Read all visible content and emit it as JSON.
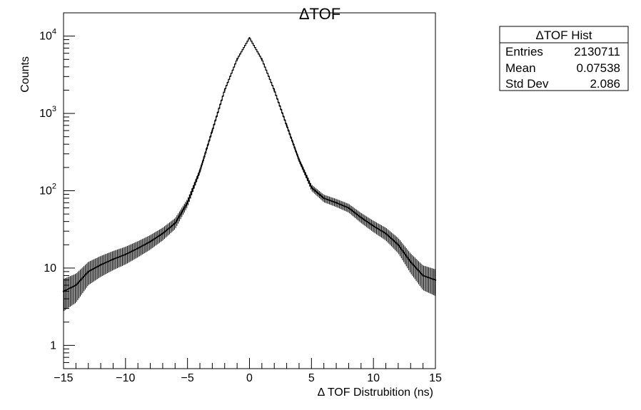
{
  "chart_data": {
    "type": "histogram",
    "title": "ΔTOF",
    "xlabel": "Δ TOF Distrubition (ns)",
    "ylabel": "Counts",
    "xlim": [
      -15,
      15
    ],
    "ylim": [
      0.5,
      20000
    ],
    "yscale": "log",
    "grid": false,
    "x_ticks": [
      -15,
      -10,
      -5,
      0,
      5,
      10,
      15
    ],
    "x_tick_labels": [
      "−15",
      "−10",
      "−5",
      "0",
      "5",
      "10",
      "15"
    ],
    "y_ticks": [
      1,
      10,
      100,
      1000,
      10000
    ],
    "y_tick_labels": [
      {
        "base": "1",
        "exp": ""
      },
      {
        "base": "10",
        "exp": ""
      },
      {
        "base": "10",
        "exp": "2"
      },
      {
        "base": "10",
        "exp": "3"
      },
      {
        "base": "10",
        "exp": "4"
      }
    ],
    "series": [
      {
        "color": "#000000",
        "x": [
          -15,
          -14,
          -13,
          -12,
          -11,
          -10,
          -9,
          -8,
          -7,
          -6,
          -5,
          -4,
          -3,
          -2,
          -1,
          0,
          1,
          2,
          3,
          4,
          5,
          6,
          7,
          8,
          9,
          10,
          11,
          12,
          13,
          14,
          15
        ],
        "y": [
          5,
          6,
          9,
          11,
          13,
          15,
          18,
          22,
          28,
          38,
          70,
          180,
          600,
          2000,
          5000,
          9500,
          5000,
          2000,
          700,
          250,
          110,
          80,
          70,
          60,
          45,
          35,
          28,
          20,
          12,
          8,
          7
        ]
      }
    ]
  },
  "stats_box": {
    "title": "ΔTOF Hist",
    "rows": [
      {
        "label": "Entries",
        "value": "2130711"
      },
      {
        "label": "Mean",
        "value": "0.07538"
      },
      {
        "label": "Std Dev",
        "value": "2.086"
      }
    ]
  }
}
